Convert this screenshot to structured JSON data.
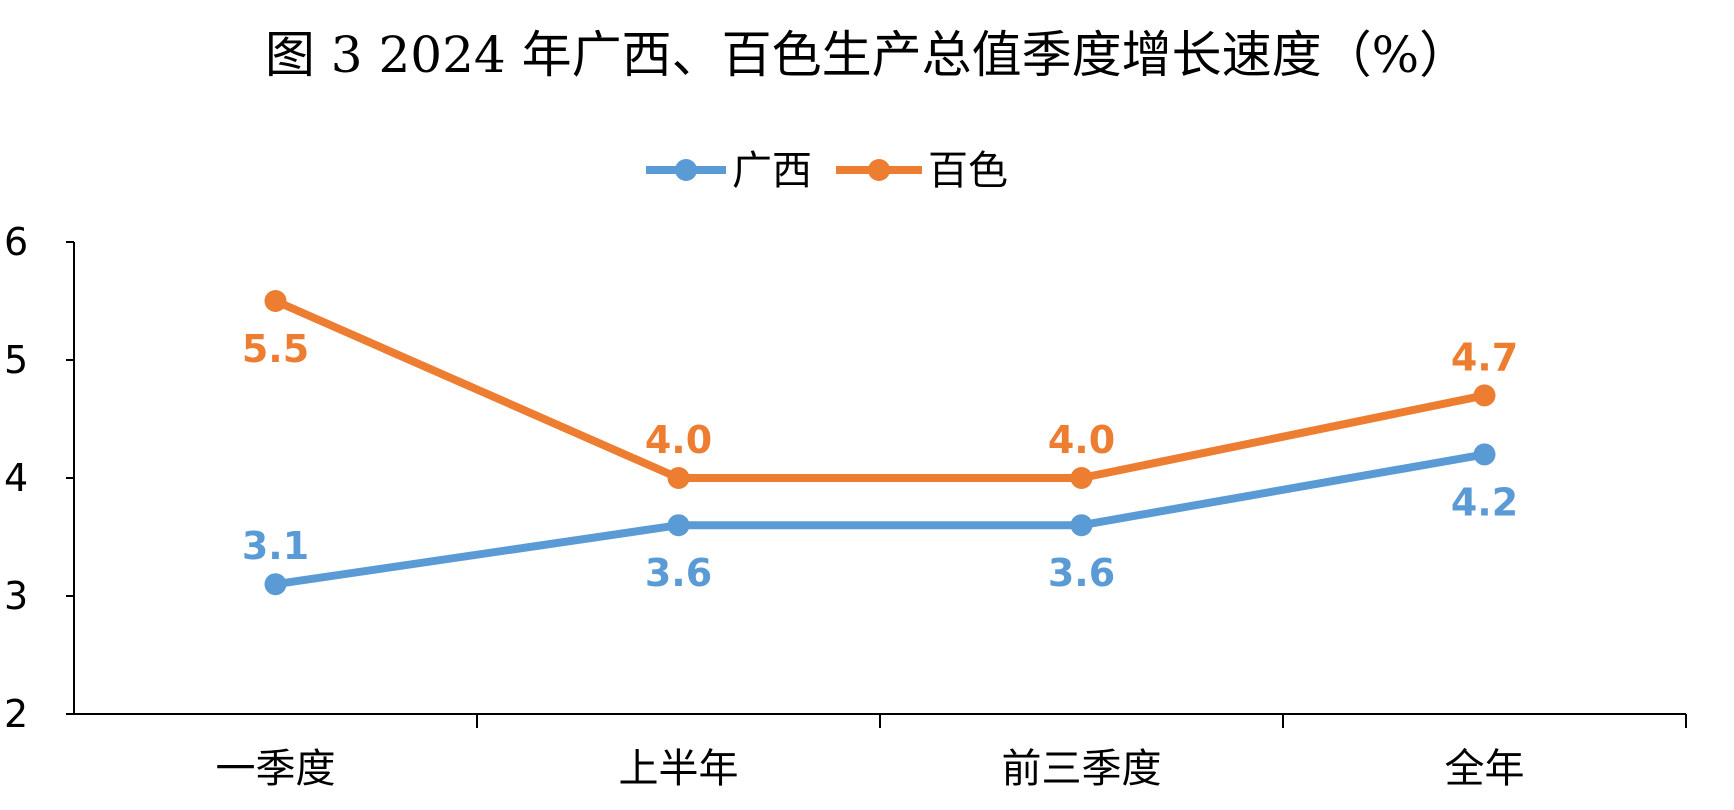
{
  "chart_data": {
    "type": "line",
    "title": "图 3   2024 年广西、百色生产总值季度增长速度（%）",
    "categories": [
      "一季度",
      "上半年",
      "前三季度",
      "全年"
    ],
    "series": [
      {
        "name": "广西",
        "color": "#5B9BD5",
        "values": [
          3.1,
          3.6,
          3.6,
          4.2
        ],
        "labels": [
          "3.1",
          "3.6",
          "3.6",
          "4.2"
        ],
        "label_position": [
          "above",
          "below",
          "below",
          "below"
        ]
      },
      {
        "name": "百色",
        "color": "#ED7D31",
        "values": [
          5.5,
          4.0,
          4.0,
          4.7
        ],
        "labels": [
          "5.5",
          "4.0",
          "4.0",
          "4.7"
        ],
        "label_position": [
          "below",
          "above",
          "above",
          "above"
        ]
      }
    ],
    "ylim": [
      2,
      6
    ],
    "yticks": [
      "2",
      "3",
      "4",
      "5",
      "6"
    ],
    "xlabel": "",
    "ylabel": "",
    "grid": false,
    "legend": "top-center"
  }
}
